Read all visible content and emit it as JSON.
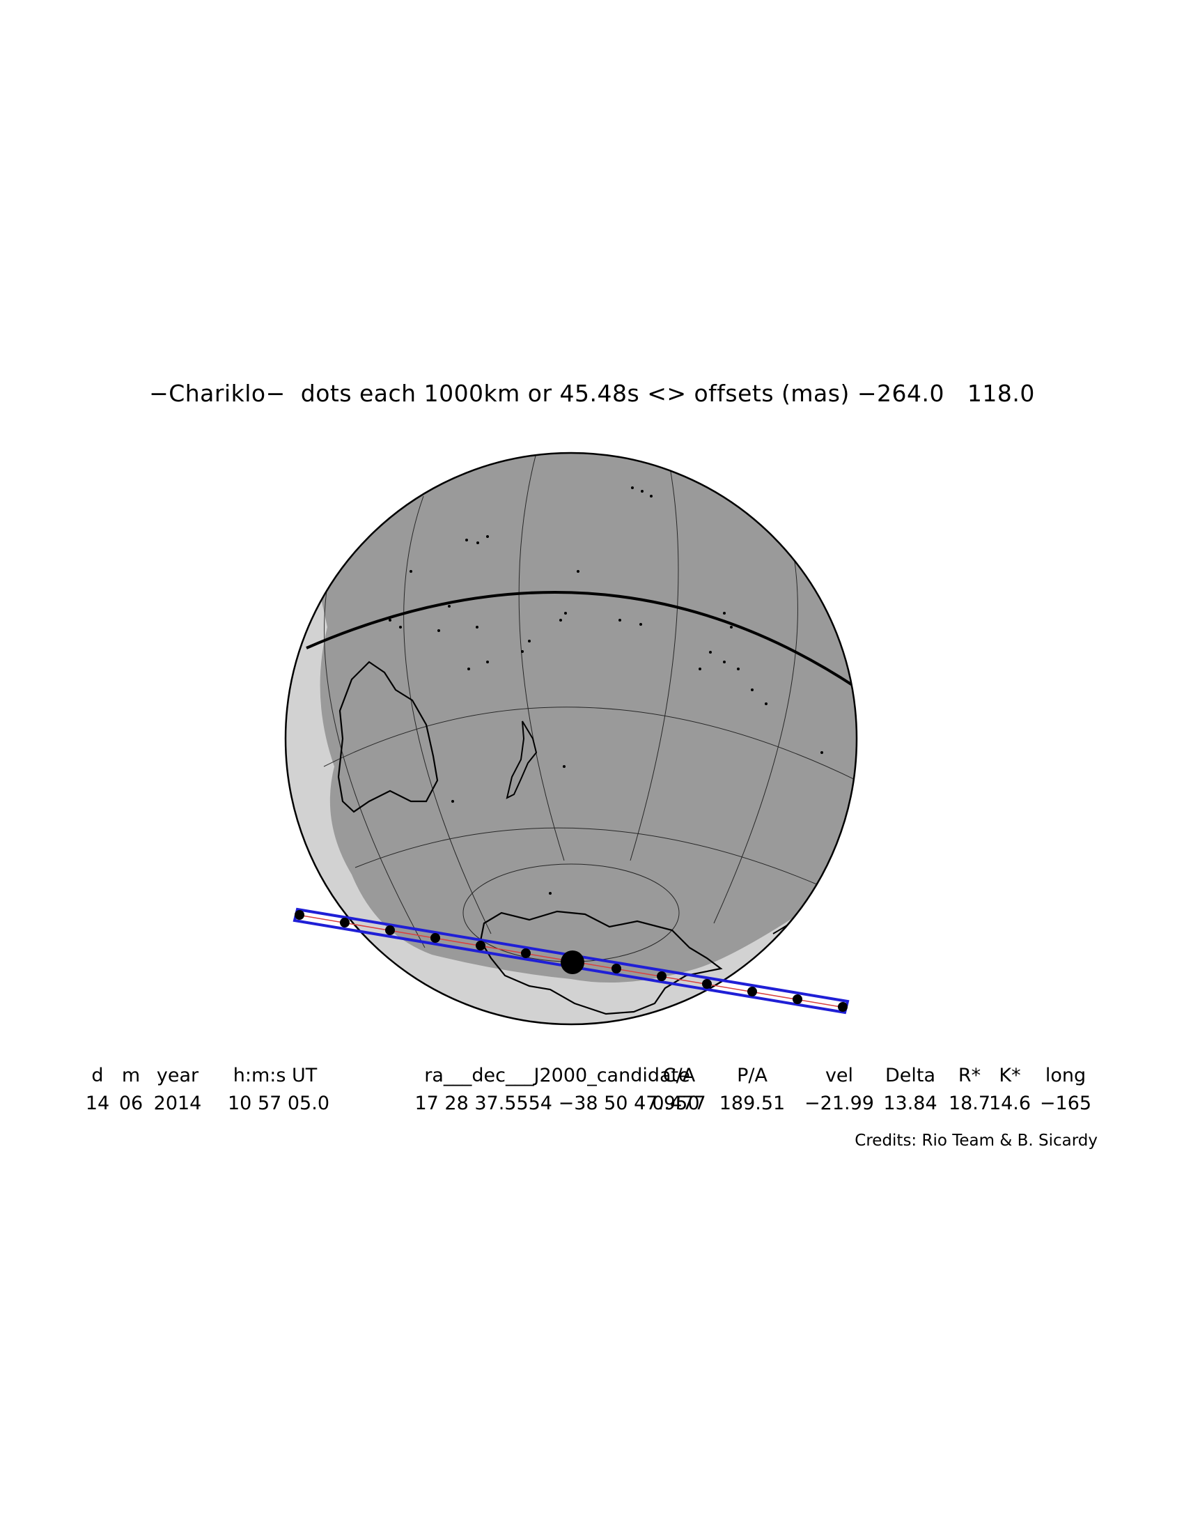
{
  "title": "−Chariklo−  dots each 1000km or 45.48s <> offsets (mas) −264.0   118.0",
  "table": {
    "headers": [
      "d",
      "m",
      "year",
      "h:m:s UT",
      "ra___dec___J2000_candidate",
      "C/A",
      "P/A",
      "vel",
      "Delta",
      "R*",
      "K*",
      "long"
    ],
    "values": [
      "14",
      "06",
      "2014",
      "10 57 05.0",
      "17 28 37.5554 −38 50 47.950",
      "0.477",
      "189.51",
      "−21.99",
      "13.84",
      "18.7",
      "14.6",
      "−165"
    ]
  },
  "credits": "Credits: Rio Team & B. Sicardy",
  "colors": {
    "night_side": "#9a9a9a",
    "twilight_band": "#d2d2d2",
    "coastline": "#000000",
    "shadow_path": "#1f1fd6",
    "central_line": "#d84040"
  },
  "occultation": {
    "body": "Chariklo",
    "dot_spacing_km": 1000,
    "dot_spacing_s": 45.48,
    "offsets_mas": [
      -264.0,
      118.0
    ]
  }
}
